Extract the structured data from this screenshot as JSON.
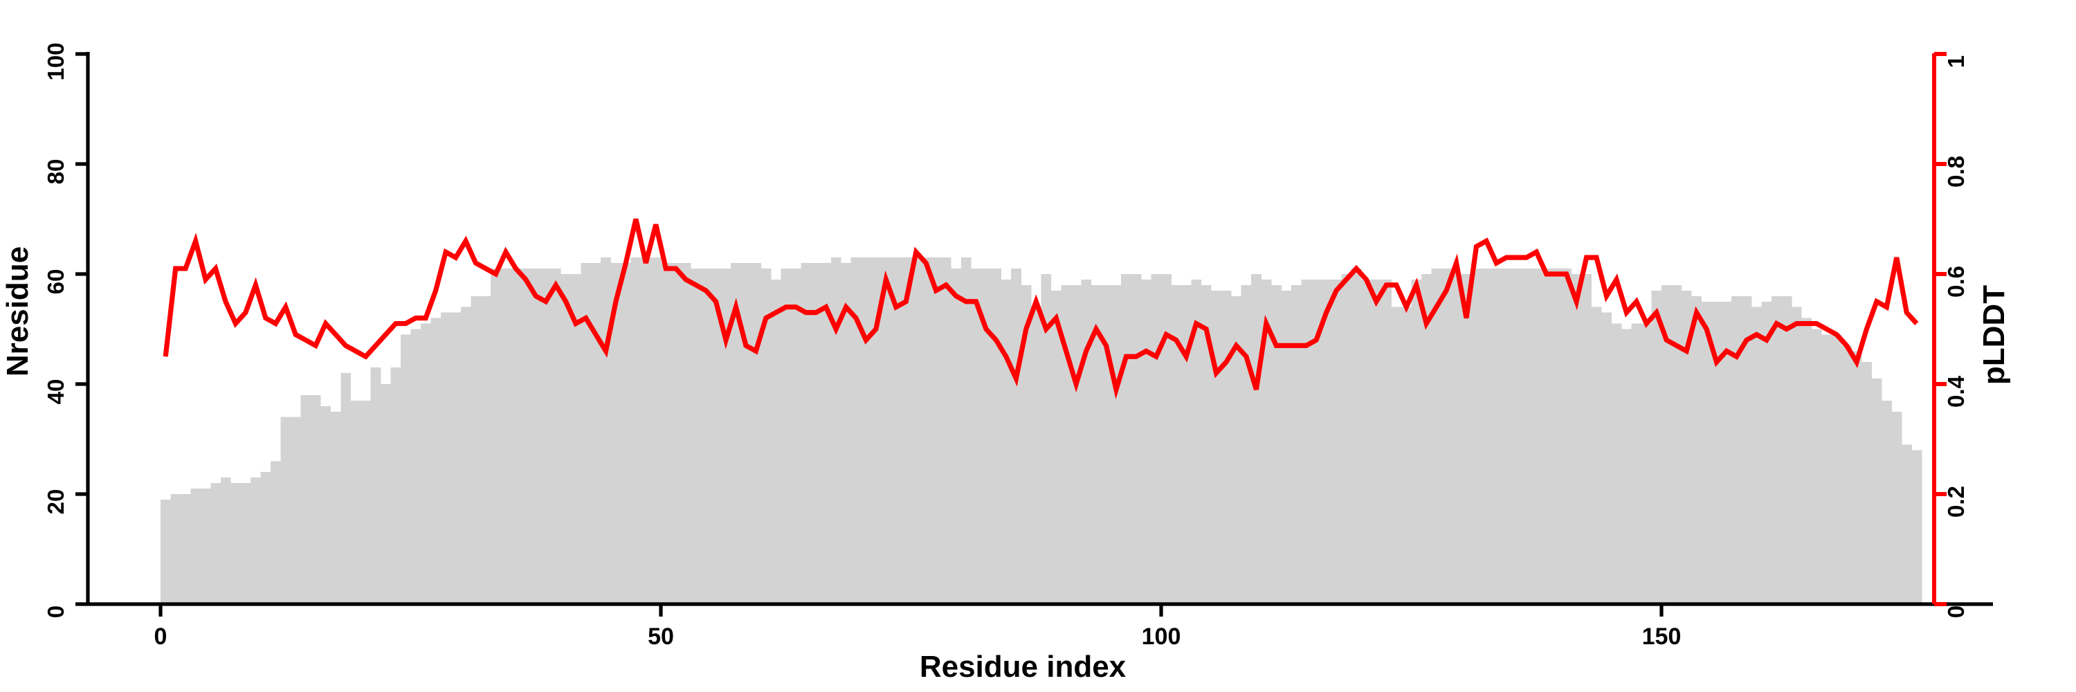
{
  "chart_data": {
    "type": "bar",
    "subtype": "dual-axis-bar-plus-line",
    "title": "",
    "x_axis": {
      "label": "Residue index",
      "ticks": [
        0,
        50,
        100,
        150
      ],
      "range": [
        0,
        183
      ]
    },
    "left_axis": {
      "label": "Nresidue",
      "ticks": [
        0,
        20,
        40,
        60,
        80,
        100
      ],
      "range": [
        0,
        100
      ],
      "color": "#000000"
    },
    "right_axis": {
      "label": "pLDDT",
      "ticks": [
        0,
        0.2,
        0.4,
        0.6,
        0.8,
        1
      ],
      "range": [
        0,
        1
      ],
      "color": "#ff0000"
    },
    "grid": false,
    "legend": "none",
    "x_range": [
      1,
      176
    ],
    "series": [
      {
        "name": "Nresidue",
        "kind": "bar",
        "axis": "left",
        "color": "#d3d3d3",
        "values": [
          19,
          20,
          20,
          21,
          21,
          22,
          23,
          22,
          22,
          23,
          24,
          26,
          34,
          34,
          38,
          38,
          36,
          35,
          42,
          37,
          37,
          43,
          40,
          43,
          49,
          50,
          51,
          52,
          53,
          53,
          54,
          56,
          56,
          61,
          61,
          61,
          61,
          61,
          61,
          61,
          60,
          60,
          62,
          62,
          63,
          62,
          62,
          63,
          63,
          63,
          62,
          62,
          62,
          61,
          61,
          61,
          61,
          62,
          62,
          62,
          61,
          59,
          61,
          61,
          62,
          62,
          62,
          63,
          62,
          63,
          63,
          63,
          63,
          63,
          63,
          63,
          63,
          63,
          63,
          61,
          63,
          61,
          61,
          61,
          59,
          61,
          58,
          54,
          60,
          57,
          58,
          58,
          59,
          58,
          58,
          58,
          60,
          60,
          59,
          60,
          60,
          58,
          58,
          59,
          58,
          57,
          57,
          56,
          58,
          60,
          59,
          58,
          57,
          58,
          59,
          59,
          59,
          59,
          60,
          61,
          59,
          59,
          59,
          54,
          54,
          59,
          60,
          61,
          61,
          60,
          60,
          61,
          61,
          61,
          61,
          61,
          61,
          61,
          61,
          61,
          61,
          60,
          60,
          54,
          53,
          51,
          50,
          51,
          51,
          57,
          58,
          58,
          57,
          56,
          55,
          55,
          55,
          56,
          56,
          54,
          55,
          56,
          56,
          54,
          52,
          50,
          49,
          49,
          47,
          46,
          44,
          41,
          37,
          35,
          29,
          28
        ]
      },
      {
        "name": "pLDDT",
        "kind": "line",
        "axis": "right",
        "color": "#ff0000",
        "values": [
          0.45,
          0.61,
          0.61,
          0.66,
          0.59,
          0.61,
          0.55,
          0.51,
          0.53,
          0.58,
          0.52,
          0.51,
          0.54,
          0.49,
          0.48,
          0.47,
          0.51,
          0.49,
          0.47,
          0.46,
          0.45,
          0.47,
          0.49,
          0.51,
          0.51,
          0.52,
          0.52,
          0.57,
          0.64,
          0.63,
          0.66,
          0.62,
          0.61,
          0.6,
          0.64,
          0.61,
          0.59,
          0.56,
          0.55,
          0.58,
          0.55,
          0.51,
          0.52,
          0.49,
          0.46,
          0.55,
          0.62,
          0.7,
          0.62,
          0.69,
          0.61,
          0.61,
          0.59,
          0.58,
          0.57,
          0.55,
          0.48,
          0.54,
          0.47,
          0.46,
          0.52,
          0.53,
          0.54,
          0.54,
          0.53,
          0.53,
          0.54,
          0.5,
          0.54,
          0.52,
          0.48,
          0.5,
          0.59,
          0.54,
          0.55,
          0.64,
          0.62,
          0.57,
          0.58,
          0.56,
          0.55,
          0.55,
          0.5,
          0.48,
          0.45,
          0.41,
          0.5,
          0.55,
          0.5,
          0.52,
          0.46,
          0.4,
          0.46,
          0.5,
          0.47,
          0.39,
          0.45,
          0.45,
          0.46,
          0.45,
          0.49,
          0.48,
          0.45,
          0.51,
          0.5,
          0.42,
          0.44,
          0.47,
          0.45,
          0.39,
          0.51,
          0.47,
          0.47,
          0.47,
          0.47,
          0.48,
          0.53,
          0.57,
          0.59,
          0.61,
          0.59,
          0.55,
          0.58,
          0.58,
          0.54,
          0.58,
          0.51,
          0.54,
          0.57,
          0.62,
          0.52,
          0.65,
          0.66,
          0.62,
          0.63,
          0.63,
          0.63,
          0.64,
          0.6,
          0.6,
          0.6,
          0.55,
          0.63,
          0.63,
          0.56,
          0.59,
          0.53,
          0.55,
          0.51,
          0.53,
          0.48,
          0.47,
          0.46,
          0.53,
          0.5,
          0.44,
          0.46,
          0.45,
          0.48,
          0.49,
          0.48,
          0.51,
          0.5,
          0.51,
          0.51,
          0.51,
          0.5,
          0.49,
          0.47,
          0.44,
          0.5,
          0.55,
          0.54,
          0.63,
          0.53,
          0.51
        ]
      }
    ]
  },
  "colors": {
    "bar_fill": "#d3d3d3",
    "line": "#ff0000",
    "right_axis": "#ff0000",
    "axis": "#000000",
    "background": "#ffffff"
  }
}
